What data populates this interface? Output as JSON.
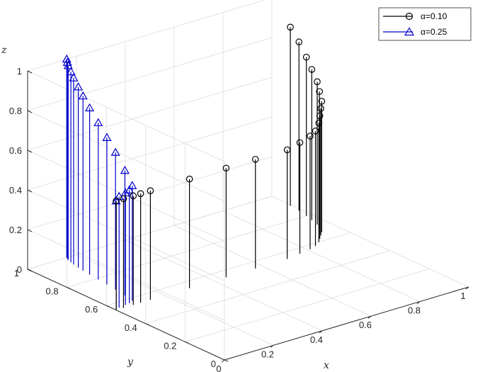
{
  "chart_data": {
    "type": "stem3",
    "xlabel": "x",
    "ylabel": "y",
    "zlabel": "z",
    "xlim": [
      0,
      1
    ],
    "ylim": [
      0,
      1
    ],
    "zlim": [
      0,
      1
    ],
    "x_ticks": [
      "0",
      "0.2",
      "0.4",
      "0.6",
      "0.8",
      "1"
    ],
    "y_ticks": [
      "0",
      "0.2",
      "0.4",
      "0.6",
      "0.8",
      "1"
    ],
    "z_ticks": [
      "0",
      "0.2",
      "0.4",
      "0.6",
      "0.8",
      "1"
    ],
    "grid": true,
    "legend_position": "top-right",
    "series": [
      {
        "name": "α=0.10",
        "color": "#000000",
        "marker": "circle",
        "points": [
          {
            "x": 0.0,
            "y": 0.55,
            "z": 0.55
          },
          {
            "x": 0.03,
            "y": 0.55,
            "z": 0.55
          },
          {
            "x": 0.07,
            "y": 0.55,
            "z": 0.55
          },
          {
            "x": 0.1,
            "y": 0.55,
            "z": 0.55
          },
          {
            "x": 0.14,
            "y": 0.55,
            "z": 0.55
          },
          {
            "x": 0.3,
            "y": 0.55,
            "z": 0.55
          },
          {
            "x": 0.45,
            "y": 0.55,
            "z": 0.55
          },
          {
            "x": 0.57,
            "y": 0.55,
            "z": 0.55
          },
          {
            "x": 0.7,
            "y": 0.55,
            "z": 0.55
          },
          {
            "x": 0.76,
            "y": 0.56,
            "z": 0.56
          },
          {
            "x": 0.81,
            "y": 0.57,
            "z": 0.57
          },
          {
            "x": 0.84,
            "y": 0.58,
            "z": 0.58
          },
          {
            "x": 0.87,
            "y": 0.6,
            "z": 0.6
          },
          {
            "x": 0.89,
            "y": 0.62,
            "z": 0.62
          },
          {
            "x": 0.91,
            "y": 0.64,
            "z": 0.64
          },
          {
            "x": 0.93,
            "y": 0.66,
            "z": 0.66
          },
          {
            "x": 0.945,
            "y": 0.69,
            "z": 0.69
          },
          {
            "x": 0.96,
            "y": 0.72,
            "z": 0.72
          },
          {
            "x": 0.97,
            "y": 0.76,
            "z": 0.76
          },
          {
            "x": 0.98,
            "y": 0.8,
            "z": 0.8
          },
          {
            "x": 0.99,
            "y": 0.85,
            "z": 0.85
          },
          {
            "x": 0.995,
            "y": 0.9,
            "z": 0.9
          }
        ]
      },
      {
        "name": "α=0.25",
        "color": "#0000CC",
        "marker": "triangle",
        "points": [
          {
            "x": 0.0,
            "y": 0.55,
            "z": 0.55
          },
          {
            "x": 0.02,
            "y": 0.56,
            "z": 0.56
          },
          {
            "x": 0.05,
            "y": 0.565,
            "z": 0.565
          },
          {
            "x": 0.07,
            "y": 0.57,
            "z": 0.57
          },
          {
            "x": 0.09,
            "y": 0.58,
            "z": 0.58
          },
          {
            "x": 0.1,
            "y": 0.63,
            "z": 0.63
          },
          {
            "x": 0.11,
            "y": 0.69,
            "z": 0.69
          },
          {
            "x": 0.115,
            "y": 0.74,
            "z": 0.74
          },
          {
            "x": 0.12,
            "y": 0.79,
            "z": 0.79
          },
          {
            "x": 0.125,
            "y": 0.84,
            "z": 0.84
          },
          {
            "x": 0.13,
            "y": 0.88,
            "z": 0.88
          },
          {
            "x": 0.135,
            "y": 0.91,
            "z": 0.91
          },
          {
            "x": 0.14,
            "y": 0.94,
            "z": 0.94
          },
          {
            "x": 0.145,
            "y": 0.96,
            "z": 0.96
          },
          {
            "x": 0.15,
            "y": 0.98,
            "z": 0.98
          },
          {
            "x": 0.155,
            "y": 0.99,
            "z": 0.99
          },
          {
            "x": 0.16,
            "y": 1.0,
            "z": 1.0
          }
        ]
      }
    ]
  }
}
